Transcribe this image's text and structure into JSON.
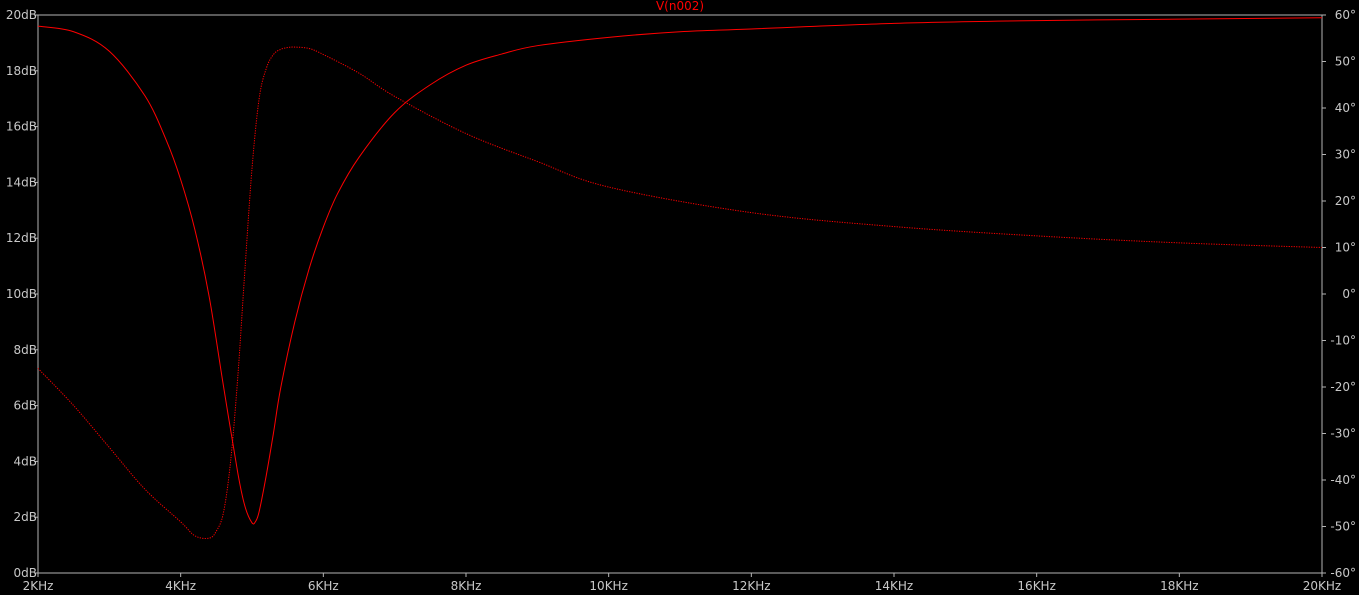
{
  "chart_data": {
    "type": "line",
    "title": "V(n002)",
    "colors": {
      "background": "#000000",
      "frame": "#b4b4b4",
      "text": "#c8c8c8",
      "trace": "#ff0000"
    },
    "x_axis": {
      "unit": "Hz",
      "range": [
        2000,
        20000
      ],
      "ticks": [
        2000,
        4000,
        6000,
        8000,
        10000,
        12000,
        14000,
        16000,
        18000,
        20000
      ],
      "tick_labels": [
        "2KHz",
        "4KHz",
        "6KHz",
        "8KHz",
        "10KHz",
        "12KHz",
        "14KHz",
        "16KHz",
        "18KHz",
        "20KHz"
      ]
    },
    "y_left": {
      "unit": "dB",
      "range": [
        0,
        20
      ],
      "ticks": [
        0,
        2,
        4,
        6,
        8,
        10,
        12,
        14,
        16,
        18,
        20
      ],
      "tick_labels": [
        "0dB",
        "2dB",
        "4dB",
        "6dB",
        "8dB",
        "10dB",
        "12dB",
        "14dB",
        "16dB",
        "18dB",
        "20dB"
      ]
    },
    "y_right": {
      "unit": "degrees",
      "range": [
        -60,
        60
      ],
      "ticks": [
        60,
        50,
        40,
        30,
        20,
        10,
        0,
        -10,
        -20,
        -30,
        -40,
        -50,
        -60
      ],
      "tick_labels": [
        "60°",
        "50°",
        "40°",
        "30°",
        "20°",
        "10°",
        "0°",
        "-10°",
        "-20°",
        "-30°",
        "-40°",
        "-50°",
        "-60°"
      ]
    },
    "grid": false,
    "series": [
      {
        "quantity": "magnitude",
        "axis": "left",
        "line_style": "solid",
        "x": [
          2000,
          2500,
          3000,
          3500,
          3800,
          4000,
          4200,
          4400,
          4600,
          4800,
          4900,
          5000,
          5050,
          5100,
          5200,
          5300,
          5400,
          5600,
          5800,
          6000,
          6200,
          6500,
          7000,
          7500,
          8000,
          8500,
          9000,
          10000,
          11000,
          12000,
          14000,
          16000,
          18000,
          20000
        ],
        "y": [
          19.6,
          19.4,
          18.7,
          17.1,
          15.5,
          14.1,
          12.3,
          9.9,
          6.7,
          3.6,
          2.4,
          1.8,
          1.85,
          2.2,
          3.5,
          5.0,
          6.6,
          9.0,
          10.9,
          12.4,
          13.6,
          14.9,
          16.5,
          17.5,
          18.2,
          18.6,
          18.9,
          19.2,
          19.4,
          19.5,
          19.7,
          19.8,
          19.85,
          19.9
        ]
      },
      {
        "quantity": "phase",
        "axis": "right",
        "line_style": "dotted",
        "x": [
          2000,
          2500,
          3000,
          3500,
          4000,
          4200,
          4400,
          4500,
          4600,
          4700,
          4800,
          4900,
          5000,
          5100,
          5200,
          5300,
          5400,
          5500,
          5600,
          5800,
          6000,
          6500,
          7000,
          8000,
          9000,
          10000,
          12000,
          14000,
          16000,
          18000,
          20000
        ],
        "y": [
          -16,
          -24,
          -33,
          -42,
          -49,
          -52,
          -52.5,
          -51,
          -47,
          -36,
          -18,
          5,
          27,
          42,
          48.5,
          51.5,
          52.6,
          53,
          53.1,
          52.8,
          51.5,
          47.5,
          42.5,
          34.5,
          28.5,
          23,
          17.5,
          14.5,
          12.5,
          11,
          10
        ]
      }
    ]
  }
}
